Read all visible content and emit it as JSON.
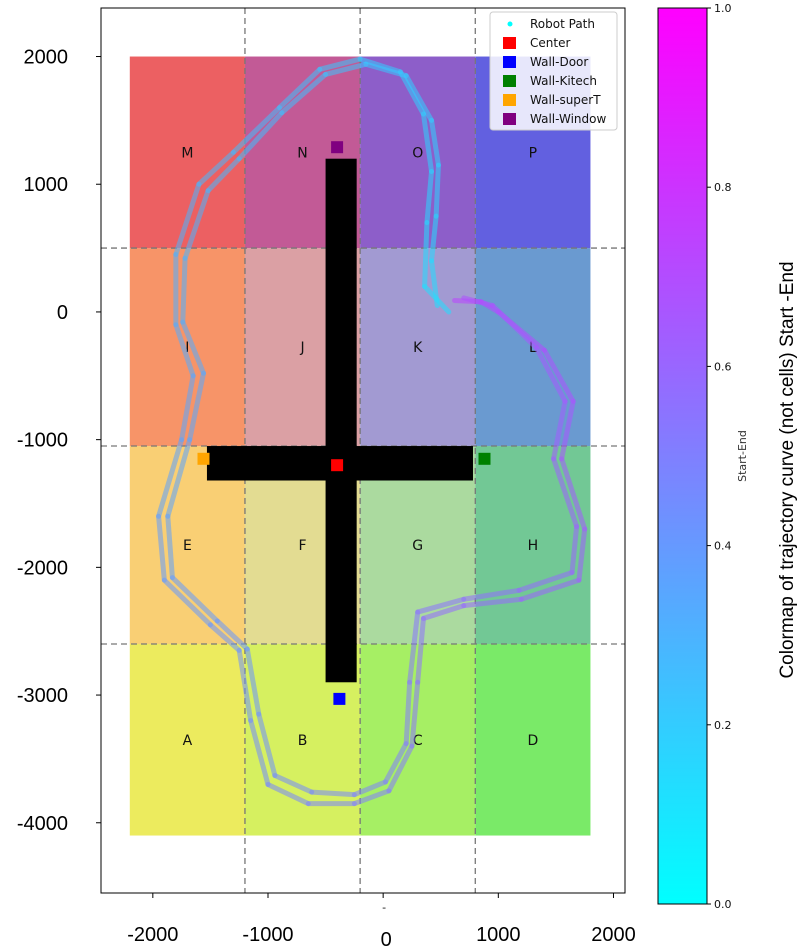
{
  "chart_data": {
    "type": "scatter",
    "title": "",
    "xlim": [
      -2450,
      2100
    ],
    "ylim": [
      -4550,
      2380
    ],
    "x_ticks": [
      -2000,
      -1000,
      0,
      1000,
      2000
    ],
    "y_ticks": [
      2000,
      1000,
      0,
      -1000,
      -2000,
      -3000,
      -4000
    ],
    "x_tick_labels": [
      "-2000",
      "-1000",
      "0",
      "1000",
      "2000"
    ],
    "y_tick_labels": [
      "2000",
      "1000",
      "0",
      "-1000",
      "-2000",
      "-3000",
      "-4000"
    ],
    "x_divider_label": "-",
    "grid_lines_x": [
      -1200,
      -200,
      800
    ],
    "grid_lines_y": [
      -2600,
      -1050,
      500
    ],
    "cell_columns_x": [
      -2200,
      -1200,
      -200,
      800,
      1800
    ],
    "cell_rows_y": [
      -4100,
      -2600,
      -1050,
      500,
      2000
    ],
    "cells": [
      {
        "label": "A",
        "row": 0,
        "col": 0,
        "color": "#eceb5e"
      },
      {
        "label": "B",
        "row": 0,
        "col": 1,
        "color": "#d6f060"
      },
      {
        "label": "C",
        "row": 0,
        "col": 2,
        "color": "#a6ef64"
      },
      {
        "label": "D",
        "row": 0,
        "col": 3,
        "color": "#7aea68"
      },
      {
        "label": "E",
        "row": 1,
        "col": 0,
        "color": "#f9cf74"
      },
      {
        "label": "F",
        "row": 1,
        "col": 1,
        "color": "#e3dc92"
      },
      {
        "label": "G",
        "row": 1,
        "col": 2,
        "color": "#abda9f"
      },
      {
        "label": "H",
        "row": 1,
        "col": 3,
        "color": "#72c895"
      },
      {
        "label": "I",
        "row": 2,
        "col": 0,
        "color": "#f79468"
      },
      {
        "label": "J",
        "row": 2,
        "col": 1,
        "color": "#dba0a4"
      },
      {
        "label": "K",
        "row": 2,
        "col": 2,
        "color": "#a29ad2"
      },
      {
        "label": "L",
        "row": 2,
        "col": 3,
        "color": "#6a9ad0"
      },
      {
        "label": "M",
        "row": 3,
        "col": 0,
        "color": "#ec6062"
      },
      {
        "label": "N",
        "row": 3,
        "col": 1,
        "color": "#c25a96"
      },
      {
        "label": "O",
        "row": 3,
        "col": 2,
        "color": "#8d5ec9"
      },
      {
        "label": "P",
        "row": 3,
        "col": 3,
        "color": "#6260e0"
      }
    ],
    "obstacle": {
      "vertical": {
        "x": [
          -500,
          -230
        ],
        "y": [
          -2900,
          1200
        ]
      },
      "horizontal": {
        "x": [
          -1530,
          780
        ],
        "y": [
          -1320,
          -1050
        ]
      }
    },
    "markers": [
      {
        "name": "Center",
        "x": -400,
        "y": -1200,
        "color": "#ff0000"
      },
      {
        "name": "Wall-Door",
        "x": -380,
        "y": -3030,
        "color": "#0000ff"
      },
      {
        "name": "Wall-Kitech",
        "x": 880,
        "y": -1150,
        "color": "#008000"
      },
      {
        "name": "Wall-superT",
        "x": -1560,
        "y": -1150,
        "color": "#ffa500"
      },
      {
        "name": "Wall-Window",
        "x": -400,
        "y": 1290,
        "color": "#800080"
      }
    ],
    "path_series_name": "Robot Path",
    "path_point_color": "#00ffff",
    "trajectories": [
      {
        "t_start": 0.12,
        "t_end": 0.75,
        "points": [
          [
            570,
            0
          ],
          [
            360,
            200
          ],
          [
            380,
            700
          ],
          [
            420,
            1100
          ],
          [
            350,
            1550
          ],
          [
            150,
            1880
          ],
          [
            -200,
            1980
          ],
          [
            -550,
            1900
          ],
          [
            -900,
            1600
          ],
          [
            -1300,
            1250
          ],
          [
            -1600,
            1000
          ],
          [
            -1800,
            450
          ],
          [
            -1800,
            -100
          ],
          [
            -1650,
            -500
          ],
          [
            -1750,
            -1000
          ],
          [
            -1950,
            -1600
          ],
          [
            -1900,
            -2100
          ],
          [
            -1500,
            -2450
          ],
          [
            -1250,
            -2650
          ],
          [
            -1150,
            -3200
          ],
          [
            -1000,
            -3700
          ],
          [
            -650,
            -3850
          ],
          [
            -250,
            -3850
          ],
          [
            50,
            -3750
          ],
          [
            250,
            -3400
          ],
          [
            300,
            -2900
          ],
          [
            350,
            -2400
          ],
          [
            700,
            -2300
          ],
          [
            1200,
            -2250
          ],
          [
            1700,
            -2100
          ],
          [
            1750,
            -1700
          ],
          [
            1550,
            -1150
          ],
          [
            1650,
            -700
          ],
          [
            1400,
            -300
          ],
          [
            1000,
            0
          ],
          [
            850,
            80
          ],
          [
            620,
            90
          ]
        ]
      },
      {
        "t_start": 0.13,
        "t_end": 0.7,
        "points": [
          [
            470,
            50
          ],
          [
            420,
            400
          ],
          [
            460,
            750
          ],
          [
            480,
            1150
          ],
          [
            420,
            1500
          ],
          [
            200,
            1850
          ],
          [
            -150,
            1940
          ],
          [
            -500,
            1860
          ],
          [
            -880,
            1560
          ],
          [
            -1250,
            1200
          ],
          [
            -1520,
            950
          ],
          [
            -1720,
            420
          ],
          [
            -1740,
            -80
          ],
          [
            -1560,
            -480
          ],
          [
            -1680,
            -1000
          ],
          [
            -1870,
            -1600
          ],
          [
            -1830,
            -2080
          ],
          [
            -1440,
            -2420
          ],
          [
            -1180,
            -2640
          ],
          [
            -1080,
            -3150
          ],
          [
            -940,
            -3630
          ],
          [
            -620,
            -3760
          ],
          [
            -250,
            -3780
          ],
          [
            20,
            -3680
          ],
          [
            200,
            -3380
          ],
          [
            230,
            -2900
          ],
          [
            300,
            -2350
          ],
          [
            700,
            -2250
          ],
          [
            1180,
            -2180
          ],
          [
            1640,
            -2040
          ],
          [
            1680,
            -1680
          ],
          [
            1480,
            -1150
          ],
          [
            1580,
            -700
          ],
          [
            1330,
            -280
          ],
          [
            950,
            50
          ],
          [
            700,
            110
          ]
        ]
      }
    ],
    "legend": [
      {
        "label": "Robot Path",
        "kind": "dot",
        "color": "#00ffff"
      },
      {
        "label": "Center",
        "kind": "square",
        "color": "#ff0000"
      },
      {
        "label": "Wall-Door",
        "kind": "square",
        "color": "#0000ff"
      },
      {
        "label": "Wall-Kitech",
        "kind": "square",
        "color": "#008000"
      },
      {
        "label": "Wall-superT",
        "kind": "square",
        "color": "#ffa500"
      },
      {
        "label": "Wall-Window",
        "kind": "square",
        "color": "#800080"
      }
    ],
    "legend_position": "top-right",
    "colorbar": {
      "cmap": "cool",
      "min": 0.0,
      "max": 1.0,
      "ticks": [
        0.0,
        0.2,
        0.4,
        0.6,
        0.8,
        1.0
      ],
      "tick_labels": [
        "0.0",
        "0.2",
        "0.4",
        "0.6",
        "0.8",
        "1.0"
      ],
      "small_label": "Start-End",
      "title": "Colormap of trajectory curve (not cells) Start -End",
      "color_start": "#00ffff",
      "color_end": "#ff00ff"
    }
  }
}
